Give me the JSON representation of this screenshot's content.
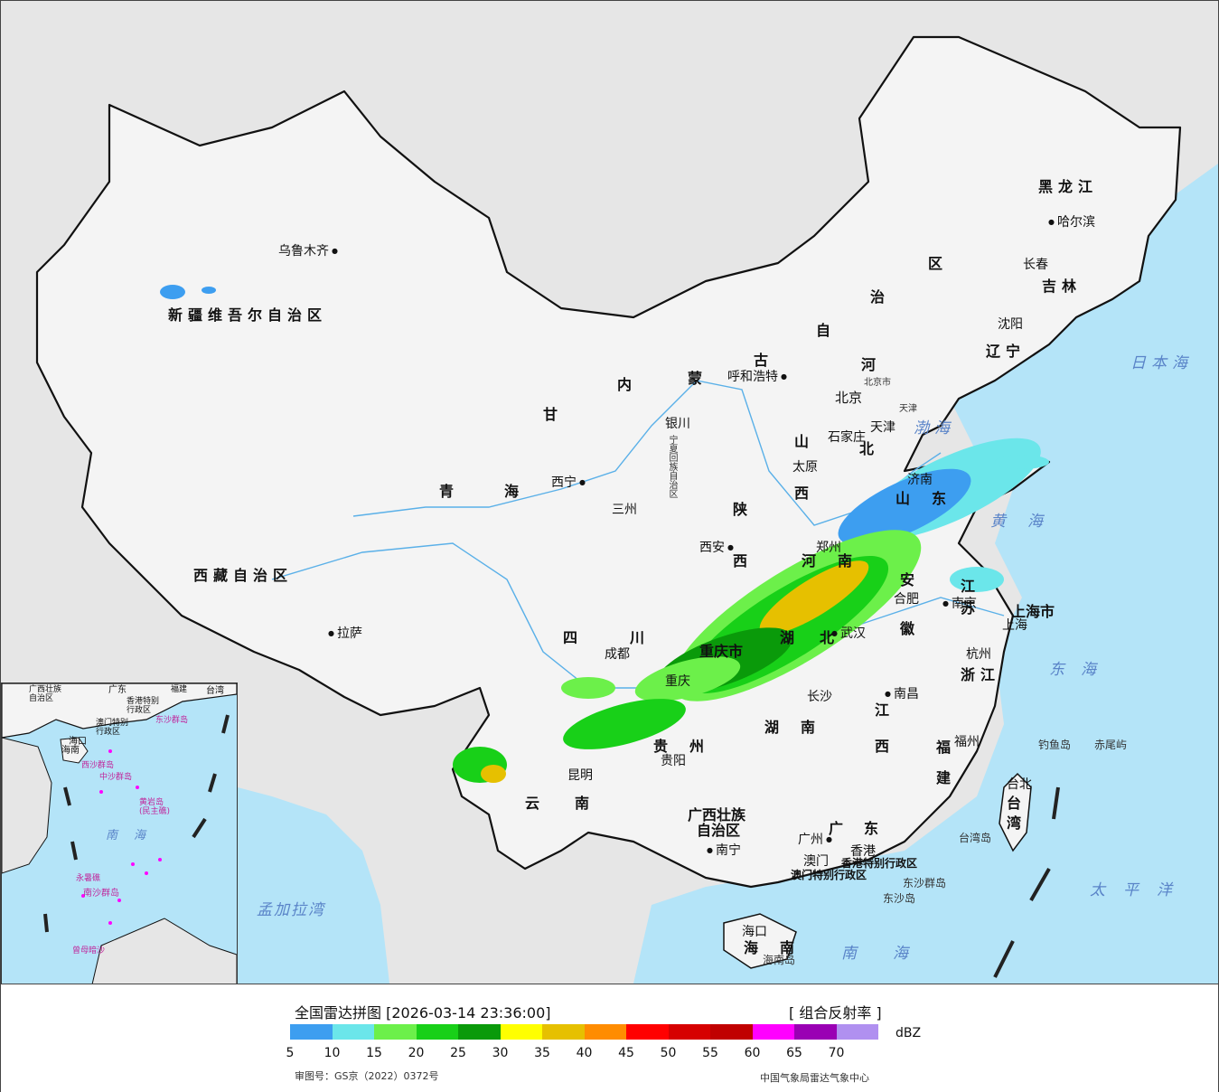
{
  "colors": {
    "sea": "#b4e4f8",
    "land_china": "#f4f4f4",
    "land_other": "#e6e6e6",
    "border": "#111111"
  },
  "labels": {
    "provinces": {
      "xinjiang": "新疆维吾尔自治区",
      "tibet": "西藏自治区",
      "qinghai_1": "青",
      "qinghai_2": "海",
      "gansu": "甘",
      "neimeng_1": "内",
      "neimeng_2": "蒙",
      "neimeng_3": "古",
      "neimeng_4": "自",
      "neimeng_5": "治",
      "neimeng_6": "区",
      "heilongjiang": "黑龙江",
      "jilin": "吉林",
      "liaoning": "辽宁",
      "hebei_1": "河",
      "hebei_2": "北",
      "shanxi_1": "山",
      "shanxi_2": "西",
      "shaanxi_1": "陕",
      "shaanxi_2": "西",
      "shandong_1": "山",
      "shandong_2": "东",
      "henan_1": "河",
      "henan_2": "南",
      "jiangsu_1": "江",
      "jiangsu_2": "苏",
      "anhui_1": "安",
      "anhui_2": "徽",
      "hubei_1": "湖",
      "hubei_2": "北",
      "sichuan_1": "四",
      "sichuan_2": "川",
      "chongqing": "重庆市",
      "shanghai": "上海市",
      "zhejiang": "浙江",
      "jiangxi_1": "江",
      "jiangxi_2": "西",
      "hunan_1": "湖",
      "hunan_2": "南",
      "guizhou_1": "贵",
      "guizhou_2": "州",
      "yunnan_1": "云",
      "yunnan_2": "南",
      "fujian_1": "福",
      "fujian_2": "建",
      "guangxi_1": "广西壮族",
      "guangxi_2": "自治区",
      "guangdong_1": "广",
      "guangdong_2": "东",
      "hainan_1": "海",
      "hainan_2": "南",
      "taiwan_1": "台",
      "taiwan_2": "湾",
      "ningxia": "宁夏回族自治区",
      "tianjin": "天津",
      "beijing_city": "北京市",
      "hk": "香港特别行政区",
      "macau": "澳门特别行政区"
    },
    "cities": {
      "urumqi": "乌鲁木齐",
      "lhasa": "拉萨",
      "xining": "西宁",
      "lanzhou": "三州",
      "yinchuan": "银川",
      "hohhot": "呼和浩特",
      "harbin": "哈尔滨",
      "changchun": "长春",
      "shenyang": "沈阳",
      "beijing": "北京",
      "tianjin": "天津",
      "shijiazhuang": "石家庄",
      "taiyuan": "太原",
      "xian": "西安",
      "zhengzhou": "郑州",
      "jinan": "济南",
      "nanjing": "南京",
      "hefei": "合肥",
      "shanghai": "上海",
      "hangzhou": "杭州",
      "wuhan": "武汉",
      "chengdu": "成都",
      "chongqing": "重庆",
      "changsha": "长沙",
      "nanchang": "南昌",
      "fuzhou": "福州",
      "guiyang": "贵阳",
      "kunming": "昆明",
      "nanning": "南宁",
      "guangzhou": "广州",
      "hk": "香港",
      "macau": "澳门",
      "haikou": "海口",
      "taipei": "台北"
    },
    "seas": {
      "japan_sea": "日本海",
      "bohai": "渤海",
      "yellow_sea": "黄海",
      "east_sea": "东海",
      "pacific": "太平洋",
      "south_sea": "南海",
      "bengal": "孟加拉湾"
    },
    "islands": {
      "diaoyu": "钓鱼岛",
      "chiwei": "赤尾屿",
      "taiwan_island": "台湾岛",
      "dongsha_islands": "东沙群岛",
      "dongsha": "东沙岛",
      "hainan_island": "海南岛"
    },
    "inset": {
      "guangxi": "广西壮族\n自治区",
      "guangdong": "广东",
      "fujian": "福建",
      "taiwan": "台湾",
      "haikou": "海口",
      "hainan": "海南",
      "hk": "香港特别\n行政区",
      "macau": "澳门特别\n行政区",
      "dongsha": "东沙群岛",
      "xisha": "西沙群岛",
      "zhongsha": "中沙群岛",
      "huangyan": "黄岩岛\n(民主礁)",
      "nansha": "南沙群岛",
      "yongshu": "永暑礁",
      "zengmu": "曾母暗沙",
      "south_sea": "南海"
    }
  },
  "legend": {
    "title": "全国雷达拼图 [2026-03-14 23:36:00]",
    "product": "[ 组合反射率 ]",
    "unit": "dBZ",
    "swatch_colors": [
      "#3d9ef0",
      "#6be6ea",
      "#6cf04a",
      "#18d018",
      "#0a9a0a",
      "#ffff00",
      "#e6c000",
      "#ff8c00",
      "#ff0000",
      "#d60000",
      "#c00000",
      "#ff00ff",
      "#9a00b4",
      "#b090f0"
    ],
    "ticks": [
      "5",
      "10",
      "15",
      "20",
      "25",
      "30",
      "35",
      "40",
      "45",
      "50",
      "55",
      "60",
      "65",
      "70"
    ],
    "review_no": "审图号：GS京（2022）0372号",
    "source": "中国气象局雷达气象中心"
  }
}
